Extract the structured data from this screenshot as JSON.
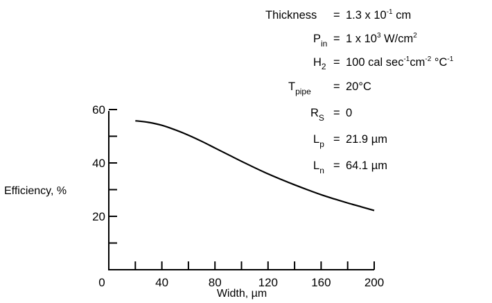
{
  "chart_data": {
    "type": "line",
    "title": "",
    "xlabel": "Width, µm",
    "ylabel": "Efficiency, %",
    "xlim": [
      0,
      200
    ],
    "ylim": [
      0,
      60
    ],
    "x_ticks": [
      0,
      40,
      80,
      120,
      160,
      200
    ],
    "x_minor_ticks": [
      20,
      60,
      100,
      140,
      180
    ],
    "y_ticks": [
      20,
      40,
      60
    ],
    "y_minor_ticks": [
      10,
      30,
      50
    ],
    "grid": false,
    "series": [
      {
        "x": [
          20,
          30,
          40,
          50,
          60,
          70,
          80,
          90,
          100,
          110,
          120,
          130,
          140,
          150,
          160,
          170,
          180,
          190,
          200
        ],
        "y": [
          55.8,
          55.2,
          54.1,
          52.4,
          50.4,
          48.1,
          45.6,
          43.1,
          40.6,
          38.2,
          35.9,
          33.8,
          31.8,
          29.9,
          28.1,
          26.5,
          25.0,
          23.6,
          22.2
        ]
      }
    ]
  },
  "parameters": {
    "thickness": {
      "name": "Thickness",
      "eq": "=",
      "value": "1.3 x 10",
      "exp": "-1",
      "unit": " cm"
    },
    "pin": {
      "sym": "P",
      "sub": "in",
      "eq": "=",
      "value": "1 x 10",
      "exp": "3",
      "unit": "  W/cm",
      "unit_exp": "2"
    },
    "h2": {
      "sym": "H",
      "sub": "2",
      "eq": "=",
      "value": "100 cal sec",
      "exp1": "-1",
      "mid": "cm",
      "exp2": "-2",
      "mid2": " °C",
      "exp3": "-1"
    },
    "tpipe": {
      "sym": "T",
      "sub": "pipe",
      "eq": "=",
      "value": "20°C"
    },
    "rs": {
      "sym": "R",
      "sub": "S",
      "eq": "=",
      "value": "0"
    },
    "lp": {
      "sym": "L",
      "sub": "p",
      "eq": "=",
      "value": "21.9 µm"
    },
    "ln": {
      "sym": "L",
      "sub": "n",
      "eq": "=",
      "value": "64.1 µm"
    }
  }
}
